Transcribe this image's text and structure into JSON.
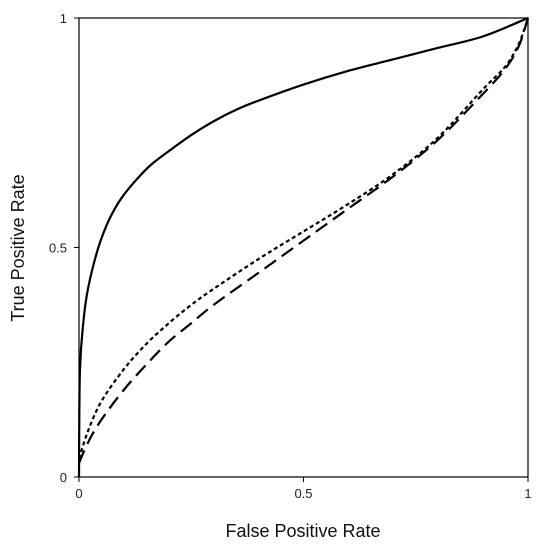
{
  "chart_data": {
    "type": "line",
    "title": "",
    "xlabel": "False Positive Rate",
    "ylabel": "True Positive Rate",
    "xlim": [
      0,
      1
    ],
    "ylim": [
      0,
      1
    ],
    "xticks": [
      "0",
      "0.5",
      "1"
    ],
    "yticks": [
      "0",
      "0.5",
      "1"
    ],
    "grid": false,
    "legend": "none",
    "series": [
      {
        "style": "solid",
        "color": "#000000",
        "x": [
          0,
          0.002,
          0.01,
          0.02,
          0.04,
          0.06,
          0.08,
          0.1,
          0.13,
          0.16,
          0.2,
          0.25,
          0.3,
          0.35,
          0.4,
          0.5,
          0.6,
          0.7,
          0.8,
          0.9,
          1.0
        ],
        "y": [
          0,
          0.23,
          0.34,
          0.41,
          0.49,
          0.545,
          0.585,
          0.615,
          0.65,
          0.68,
          0.71,
          0.745,
          0.775,
          0.8,
          0.82,
          0.855,
          0.885,
          0.91,
          0.935,
          0.96,
          1.0
        ]
      },
      {
        "style": "short-dash",
        "color": "#000000",
        "x": [
          0,
          0.02,
          0.05,
          0.1,
          0.15,
          0.2,
          0.25,
          0.3,
          0.4,
          0.5,
          0.6,
          0.7,
          0.8,
          0.9,
          0.95,
          0.98,
          1.0
        ],
        "y": [
          0.04,
          0.1,
          0.165,
          0.235,
          0.29,
          0.335,
          0.375,
          0.41,
          0.475,
          0.535,
          0.595,
          0.66,
          0.74,
          0.845,
          0.895,
          0.945,
          1.0
        ]
      },
      {
        "style": "long-dash",
        "color": "#000000",
        "x": [
          0,
          0.02,
          0.05,
          0.1,
          0.15,
          0.2,
          0.25,
          0.3,
          0.4,
          0.5,
          0.6,
          0.7,
          0.8,
          0.9,
          0.95,
          0.98,
          1.0
        ],
        "y": [
          0.03,
          0.075,
          0.125,
          0.19,
          0.245,
          0.295,
          0.335,
          0.375,
          0.445,
          0.515,
          0.585,
          0.655,
          0.735,
          0.835,
          0.89,
          0.94,
          1.0
        ]
      }
    ]
  }
}
